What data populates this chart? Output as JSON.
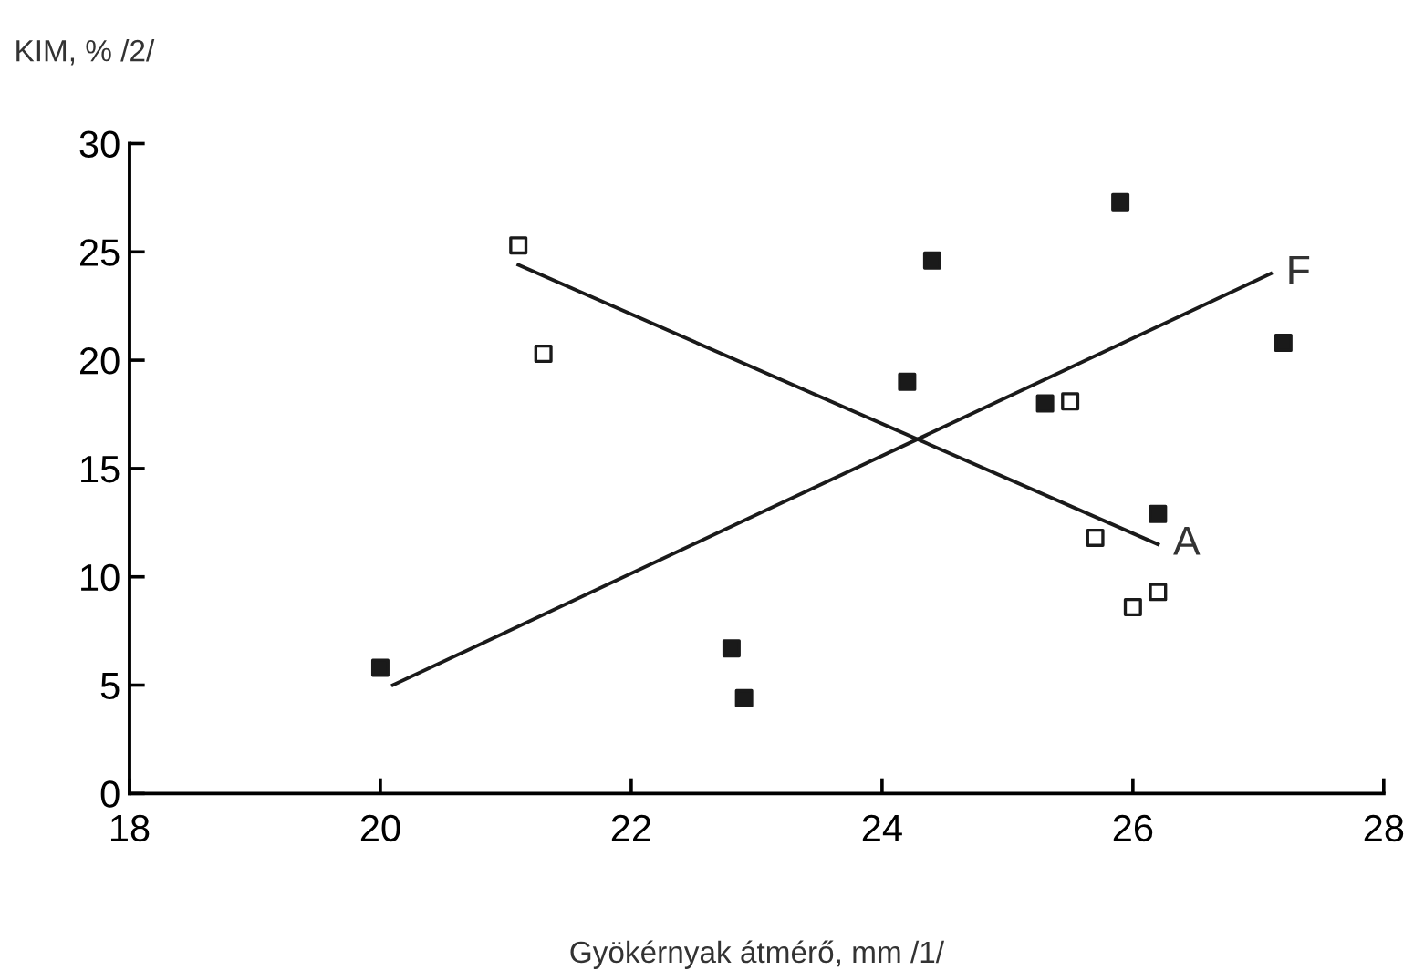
{
  "chart_data": {
    "type": "scatter",
    "xlabel": "Gyökérnyak átmérő, mm /1/",
    "ylabel": "KIM, % /2/",
    "xlim": [
      18,
      28
    ],
    "xticks": [
      18,
      20,
      22,
      24,
      26,
      28
    ],
    "ylim": [
      0,
      30
    ],
    "yticks": [
      0,
      5,
      10,
      15,
      20,
      25,
      30
    ],
    "grid": false,
    "legend": false,
    "marker": "square",
    "series": [
      {
        "color": "#1a1a1a",
        "x": [
          20.0,
          22.8,
          22.9,
          24.4,
          24.2,
          25.3,
          25.9,
          26.2,
          27.2
        ],
        "values": [
          5.8,
          6.7,
          4.4,
          24.6,
          19.0,
          18.0,
          27.3,
          12.9,
          20.8
        ]
      },
      {
        "color": "#ffffff",
        "x": [
          21.1,
          21.3,
          25.5,
          25.7,
          26.0,
          26.2
        ],
        "values": [
          25.3,
          20.3,
          18.1,
          11.8,
          8.6,
          9.3
        ]
      },
      {
        "type": "line",
        "color": "#1a1a1a",
        "marker": "none",
        "x": [
          20.1,
          27.1
        ],
        "values": [
          5.0,
          24.0
        ]
      },
      {
        "type": "line",
        "color": "#1a1a1a",
        "marker": "none",
        "x": [
          21.1,
          26.2
        ],
        "values": [
          24.4,
          11.5
        ]
      }
    ],
    "annotations": [
      {
        "text": "F",
        "x": 27.1,
        "y": 24.0
      },
      {
        "text": "A",
        "x": 26.2,
        "y": 11.5
      }
    ]
  }
}
